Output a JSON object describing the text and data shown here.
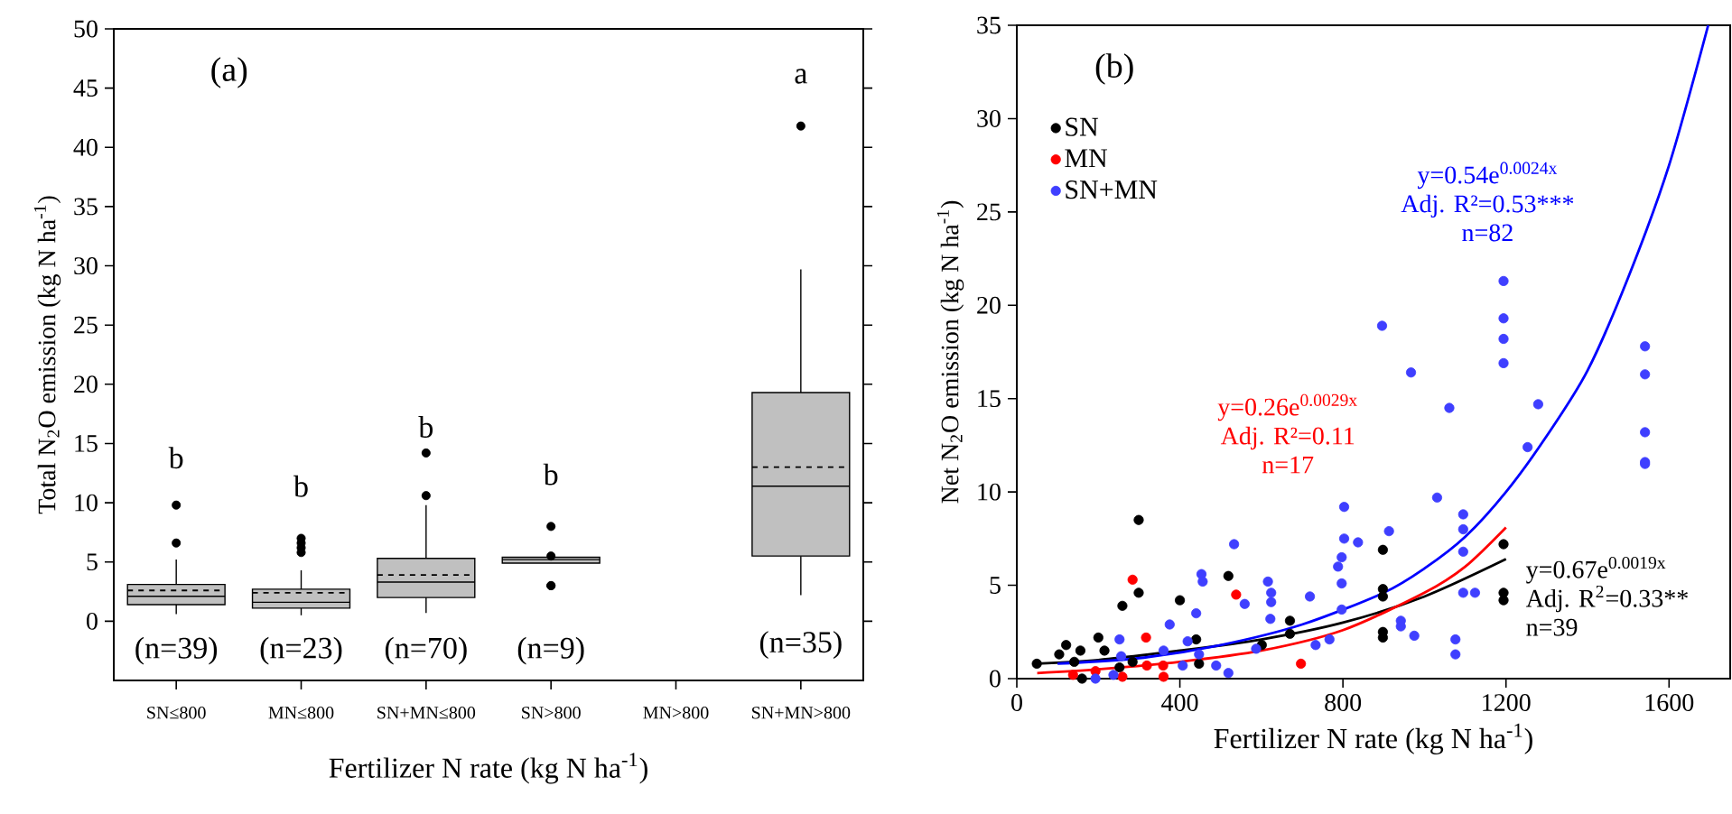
{
  "chart_data": [
    {
      "type": "box",
      "title": "(a)",
      "xlabel": "Fertilizer N rate (kg N ha$^{-1}$)",
      "ylabel": "Total N$_{2}$O emission (kg N ha$^{-1}$)",
      "color": "#c0c0c0",
      "categories": [
        "SN≤800",
        "MN≤800",
        "SN+MN≤800",
        "SN>800",
        "MN>800",
        "SN+MN>800"
      ],
      "boxes": [
        {
          "low": 0.6,
          "q1": 1.4,
          "median": 2.1,
          "q3": 3.1,
          "high": 5.2,
          "mean": 2.6,
          "outliers": [
            6.6,
            9.8
          ]
        },
        {
          "low": 0.5,
          "q1": 1.1,
          "median": 1.6,
          "q3": 2.7,
          "high": 4.3,
          "mean": 2.4,
          "outliers": [
            5.8,
            6.2,
            6.6,
            7.0
          ]
        },
        {
          "low": 0.7,
          "q1": 2.0,
          "median": 3.3,
          "q3": 5.3,
          "high": 9.8,
          "mean": 3.9,
          "outliers": [
            10.6,
            14.2
          ]
        },
        {
          "low": 4.9,
          "q1": 4.9,
          "median": 5.2,
          "q3": 5.4,
          "high": 5.4,
          "outliers": [
            3.0,
            3.0,
            5.5,
            8.0
          ]
        },
        null,
        {
          "low": 2.2,
          "q1": 5.5,
          "median": 11.4,
          "q3": 19.3,
          "high": 29.7,
          "mean": 13.0,
          "outliers": [
            41.8
          ]
        }
      ],
      "ylim": [
        -5,
        50
      ],
      "yticks": [
        0,
        5,
        10,
        15,
        20,
        25,
        30,
        35,
        40,
        45,
        50
      ],
      "annotations": [
        "b",
        "b",
        "b",
        "b",
        "a",
        "(n=39)",
        "(n=23)",
        "(n=70)",
        "(n=9)",
        "(n=35)"
      ]
    },
    {
      "type": "scatter",
      "title": "(b)",
      "xlabel": "Fertilizer N rate (kg N ha$^{-1}$)",
      "ylabel": "Net N$_{2}$O emission (kg N ha$^{-1}$)",
      "xlim": [
        0,
        1750
      ],
      "xticks": [
        0,
        400,
        800,
        1200,
        1600
      ],
      "ylim": [
        0,
        35
      ],
      "yticks": [
        0,
        5,
        10,
        15,
        20,
        25,
        30,
        35
      ],
      "legend": "top left",
      "series": [
        {
          "name": "SN",
          "color": "#000000",
          "marker": "circle",
          "x": [
            49,
            104,
            121,
            156,
            141,
            200,
            215,
            160,
            259,
            299,
            299,
            400,
            440,
            447,
            519,
            601,
            670,
            670,
            898,
            898,
            898,
            898,
            898,
            1194,
            1194,
            1194,
            284,
            252
          ],
          "values": [
            0.8,
            1.3,
            1.8,
            1.5,
            0.9,
            2.2,
            1.5,
            0,
            3.9,
            4.6,
            8.5,
            4.2,
            2.1,
            0.8,
            5.5,
            1.8,
            3.1,
            2.4,
            6.9,
            4.8,
            4.4,
            2.5,
            2.2,
            7.2,
            4.6,
            4.2,
            0.9,
            0.6
          ]
        },
        {
          "name": "MN",
          "color": "#ff0000",
          "marker": "circle",
          "x": [
            138,
            284,
            317,
            319,
            359,
            360,
            259,
            538,
            697,
            193
          ],
          "values": [
            0.2,
            5.3,
            2.2,
            0.7,
            0.7,
            0.1,
            0.1,
            4.5,
            0.8,
            0.4
          ]
        },
        {
          "name": "SN+MN",
          "color": "#3f3fff",
          "marker": "circle",
          "x": [
            896,
            967,
            1061,
            1194,
            1194,
            1194,
            1194,
            1279,
            1253,
            1541,
            1541,
            1541,
            1541,
            1541,
            1031,
            1095,
            1095,
            1095,
            1095,
            1124,
            1076,
            1076,
            975,
            942,
            942,
            913,
            837,
            803,
            803,
            797,
            788,
            797,
            797,
            767,
            733,
            719,
            616,
            624,
            624,
            622,
            587,
            533,
            559,
            453,
            456,
            440,
            419,
            447,
            375,
            360,
            252,
            256,
            193,
            489,
            519,
            407,
            237
          ],
          "values": [
            18.9,
            16.4,
            14.5,
            21.3,
            19.3,
            18.2,
            16.9,
            14.7,
            12.4,
            17.8,
            16.3,
            13.2,
            11.6,
            11.5,
            9.7,
            8.8,
            8.0,
            6.8,
            4.6,
            4.6,
            2.1,
            1.3,
            2.3,
            3.1,
            2.8,
            7.9,
            7.3,
            9.2,
            7.5,
            6.5,
            6.0,
            5.1,
            3.7,
            2.1,
            1.8,
            4.4,
            5.2,
            4.6,
            4.1,
            3.2,
            1.6,
            7.2,
            4.0,
            5.6,
            5.2,
            3.5,
            2.0,
            1.3,
            2.9,
            1.5,
            2.1,
            1.2,
            0,
            0.7,
            0.3,
            0.7,
            0.2
          ]
        },
        {
          "type": "line",
          "marker": "none",
          "name": "y=0.67e$^{0.0019x}$ Adj. R$^{2}$=0.33** n=39",
          "color": "#000000",
          "x": [
            50,
            200,
            400,
            600,
            800,
            1000,
            1200
          ],
          "values": [
            0.8,
            1.0,
            1.5,
            2.1,
            3.0,
            4.4,
            6.4
          ]
        },
        {
          "type": "line",
          "marker": "none",
          "name": "y=0.26e$^{0.0029x}$ Adj. R²=0.11 n=17",
          "color": "#ff0000",
          "x": [
            50,
            200,
            400,
            600,
            800,
            1000,
            1100,
            1200
          ],
          "values": [
            0.3,
            0.5,
            0.9,
            1.5,
            2.6,
            4.6,
            6.0,
            8.1
          ]
        },
        {
          "type": "line",
          "marker": "none",
          "name": "y=0.54e$^{0.0024x}$ Adj. R²=0.53*** n=82",
          "color": "#0000ff",
          "x": [
            100,
            300,
            500,
            700,
            900,
            1000,
            1100,
            1200,
            1300,
            1400,
            1500,
            1600,
            1696
          ],
          "values": [
            0.8,
            1.1,
            1.8,
            2.9,
            4.6,
            5.9,
            7.6,
            10.0,
            13.0,
            16.5,
            21.5,
            27.5,
            35
          ]
        }
      ]
    }
  ]
}
